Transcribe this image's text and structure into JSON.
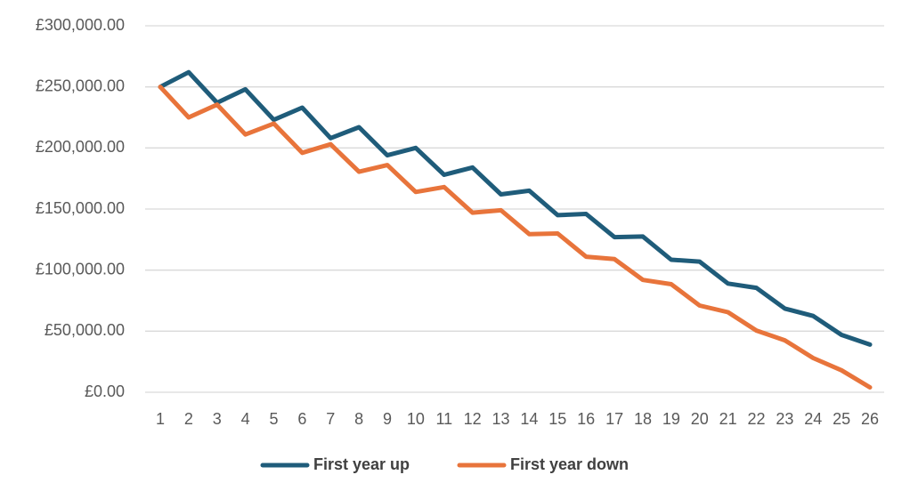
{
  "chart_data": {
    "type": "line",
    "x": [
      1,
      2,
      3,
      4,
      5,
      6,
      7,
      8,
      9,
      10,
      11,
      12,
      13,
      14,
      15,
      16,
      17,
      18,
      19,
      20,
      21,
      22,
      23,
      24,
      25,
      26
    ],
    "ylim": [
      0,
      300000
    ],
    "yticks": [
      0,
      50000,
      100000,
      150000,
      200000,
      250000,
      300000
    ],
    "ytick_labels": [
      "£0.00",
      "£50,000.00",
      "£100,000.00",
      "£150,000.00",
      "£200,000.00",
      "£250,000.00",
      "£300,000.00"
    ],
    "grid": true,
    "legend_position": "bottom",
    "series": [
      {
        "name": "First year up",
        "color": "#1f5c7a",
        "values": [
          250000,
          262000,
          237000,
          248000,
          223000,
          233000,
          208000,
          217000,
          194000,
          200000,
          178000,
          184000,
          162000,
          165000,
          145000,
          146000,
          127000,
          127500,
          108500,
          107000,
          89000,
          85500,
          68500,
          62500,
          47000,
          39000
        ]
      },
      {
        "name": "First year down",
        "color": "#e8743b",
        "values": [
          250000,
          225000,
          235500,
          211000,
          220000,
          196000,
          203000,
          180500,
          186000,
          164000,
          168000,
          147000,
          149000,
          129500,
          130000,
          111000,
          109000,
          92000,
          88500,
          71000,
          65500,
          50500,
          42500,
          28000,
          18000,
          4000
        ]
      }
    ]
  }
}
